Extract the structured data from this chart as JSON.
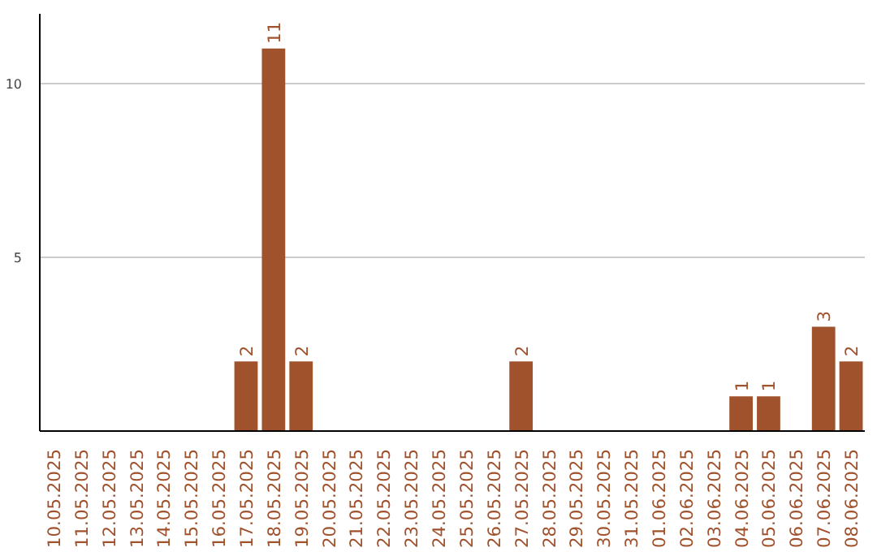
{
  "chart_data": {
    "type": "bar",
    "categories": [
      "10.05.2025",
      "11.05.2025",
      "12.05.2025",
      "13.05.2025",
      "14.05.2025",
      "15.05.2025",
      "16.05.2025",
      "17.05.2025",
      "18.05.2025",
      "19.05.2025",
      "20.05.2025",
      "21.05.2025",
      "22.05.2025",
      "23.05.2025",
      "24.05.2025",
      "25.05.2025",
      "26.05.2025",
      "27.05.2025",
      "28.05.2025",
      "29.05.2025",
      "30.05.2025",
      "31.05.2025",
      "01.06.2025",
      "02.06.2025",
      "03.06.2025",
      "04.06.2025",
      "05.06.2025",
      "06.06.2025",
      "07.06.2025",
      "08.06.2025"
    ],
    "values": [
      0,
      0,
      0,
      0,
      0,
      0,
      0,
      2,
      11,
      2,
      0,
      0,
      0,
      0,
      0,
      0,
      0,
      2,
      0,
      0,
      0,
      0,
      0,
      0,
      0,
      1,
      1,
      0,
      3,
      2
    ],
    "value_labels": [
      null,
      null,
      null,
      null,
      null,
      null,
      null,
      "2",
      "11",
      "2",
      null,
      null,
      null,
      null,
      null,
      null,
      null,
      "2",
      null,
      null,
      null,
      null,
      null,
      null,
      null,
      "1",
      "1",
      null,
      "3",
      "2"
    ],
    "color": "#a0522d",
    "ylim": [
      0,
      12
    ],
    "yticks": [
      5,
      10
    ],
    "grid": "y"
  }
}
